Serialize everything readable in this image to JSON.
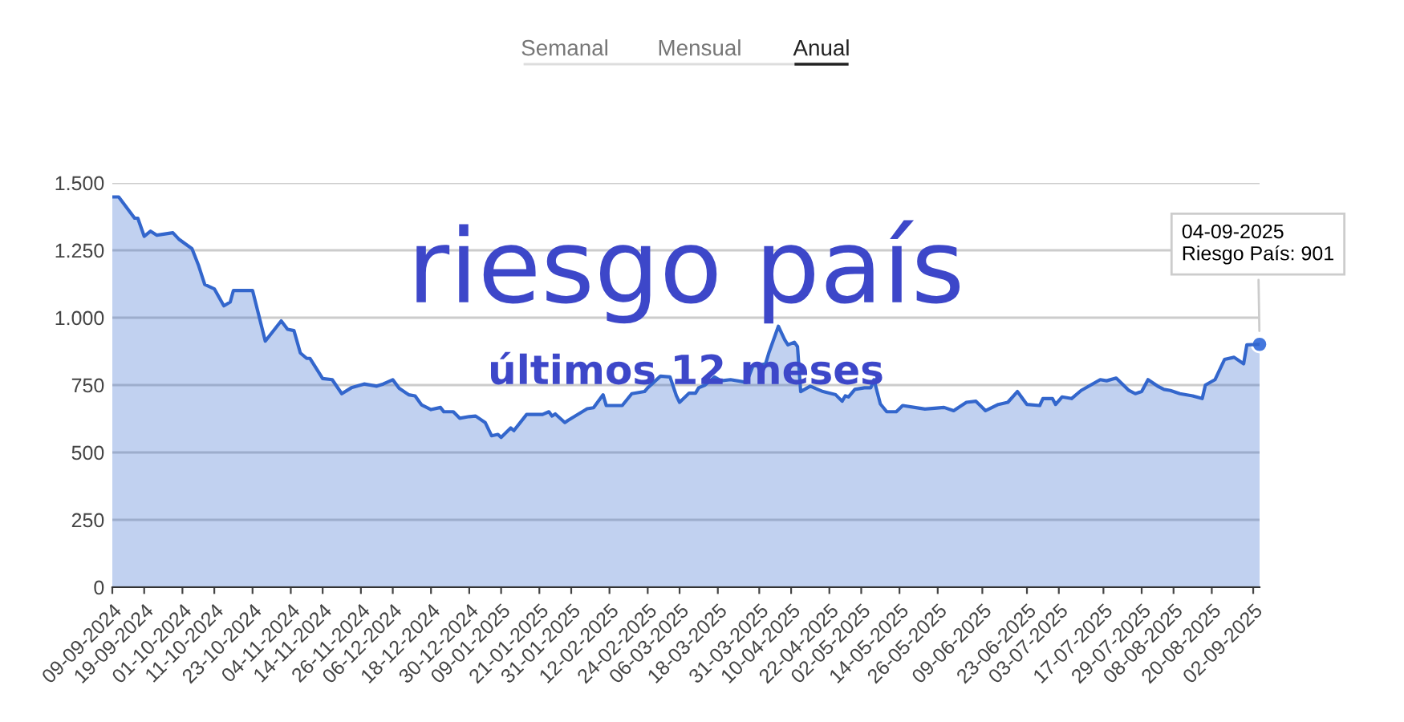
{
  "chart_data": {
    "type": "area",
    "title": "riesgo país",
    "subtitle": "últimos 12 meses",
    "annotations": [
      "Semanal",
      "Mensual",
      "Anual",
      {
        "text": "04-09-2025\nRiesgo País: 901",
        "x": "2025-09-04",
        "y": 901
      }
    ],
    "x": [
      "2024-09-09",
      "2024-09-11",
      "2024-09-16",
      "2024-09-17",
      "2024-09-19",
      "2024-09-21",
      "2024-09-23",
      "2024-09-28",
      "2024-09-30",
      "2024-10-04",
      "2024-10-06",
      "2024-10-08",
      "2024-10-11",
      "2024-10-14",
      "2024-10-16",
      "2024-10-17",
      "2024-10-23",
      "2024-10-27",
      "2024-11-01",
      "2024-11-03",
      "2024-11-05",
      "2024-11-07",
      "2024-11-09",
      "2024-11-10",
      "2024-11-14",
      "2024-11-17",
      "2024-11-20",
      "2024-11-23",
      "2024-11-27",
      "2024-12-01",
      "2024-12-03",
      "2024-12-06",
      "2024-12-08",
      "2024-12-11",
      "2024-12-13",
      "2024-12-15",
      "2024-12-18",
      "2024-12-21",
      "2024-12-22",
      "2024-12-25",
      "2024-12-27",
      "2024-12-30",
      "2025-01-01",
      "2025-01-04",
      "2025-01-06",
      "2025-01-08",
      "2025-01-09",
      "2025-01-12",
      "2025-01-13",
      "2025-01-17",
      "2025-01-22",
      "2025-01-24",
      "2025-01-25",
      "2025-01-26",
      "2025-01-29",
      "2025-01-30",
      "2025-02-05",
      "2025-02-07",
      "2025-02-10",
      "2025-02-11",
      "2025-02-16",
      "2025-02-19",
      "2025-02-23",
      "2025-02-24",
      "2025-02-28",
      "2025-03-03",
      "2025-03-05",
      "2025-03-06",
      "2025-03-09",
      "2025-03-11",
      "2025-03-12",
      "2025-03-14",
      "2025-03-17",
      "2025-03-19",
      "2025-03-22",
      "2025-03-27",
      "2025-03-29",
      "2025-04-02",
      "2025-04-03",
      "2025-04-06",
      "2025-04-08",
      "2025-04-09",
      "2025-04-11",
      "2025-04-12",
      "2025-04-13",
      "2025-04-16",
      "2025-04-20",
      "2025-04-24",
      "2025-04-26",
      "2025-04-27",
      "2025-04-28",
      "2025-04-30",
      "2025-05-03",
      "2025-05-05",
      "2025-05-06",
      "2025-05-08",
      "2025-05-10",
      "2025-05-13",
      "2025-05-15",
      "2025-05-22",
      "2025-05-28",
      "2025-05-31",
      "2025-06-04",
      "2025-06-07",
      "2025-06-10",
      "2025-06-14",
      "2025-06-17",
      "2025-06-20",
      "2025-06-23",
      "2025-06-27",
      "2025-06-28",
      "2025-07-01",
      "2025-07-02",
      "2025-07-04",
      "2025-07-07",
      "2025-07-10",
      "2025-07-16",
      "2025-07-18",
      "2025-07-21",
      "2025-07-25",
      "2025-07-27",
      "2025-07-29",
      "2025-07-31",
      "2025-08-03",
      "2025-08-05",
      "2025-08-07",
      "2025-08-10",
      "2025-08-14",
      "2025-08-17",
      "2025-08-18",
      "2025-08-21",
      "2025-08-24",
      "2025-08-27",
      "2025-08-30",
      "2025-08-31",
      "2025-09-04"
    ],
    "series": [
      {
        "color": "#3366cc",
        "values": [
          1448,
          1448,
          1369,
          1369,
          1302,
          1321,
          1306,
          1315,
          1290,
          1256,
          1196,
          1123,
          1107,
          1044,
          1058,
          1101,
          1101,
          913,
          988,
          957,
          952,
          869,
          849,
          849,
          774,
          770,
          718,
          740,
          754,
          746,
          754,
          770,
          738,
          714,
          710,
          677,
          659,
          667,
          651,
          651,
          627,
          633,
          635,
          611,
          562,
          567,
          556,
          591,
          581,
          641,
          641,
          651,
          635,
          643,
          611,
          619,
          662,
          666,
          714,
          674,
          674,
          718,
          726,
          740,
          783,
          780,
          710,
          686,
          720,
          720,
          740,
          750,
          780,
          766,
          770,
          760,
          820,
          829,
          869,
          968,
          918,
          899,
          909,
          893,
          726,
          746,
          726,
          714,
          690,
          710,
          706,
          734,
          740,
          740,
          770,
          680,
          651,
          651,
          674,
          661,
          667,
          655,
          686,
          690,
          655,
          678,
          686,
          726,
          678,
          674,
          700,
          700,
          678,
          706,
          700,
          730,
          770,
          766,
          776,
          730,
          718,
          726,
          770,
          746,
          734,
          730,
          718,
          710,
          700,
          750,
          770,
          845,
          853,
          829,
          899,
          901
        ]
      }
    ],
    "xlim": [
      "2024-09-09",
      "2025-09-04"
    ],
    "xticks": [
      {
        "value": "2024-09-09",
        "label": "09-09-2024"
      },
      {
        "value": "2024-09-19",
        "label": "19-09-2024"
      },
      {
        "value": "2024-10-01",
        "label": "01-10-2024"
      },
      {
        "value": "2024-10-11",
        "label": "11-10-2024"
      },
      {
        "value": "2024-10-23",
        "label": "23-10-2024"
      },
      {
        "value": "2024-11-04",
        "label": "04-11-2024"
      },
      {
        "value": "2024-11-14",
        "label": "14-11-2024"
      },
      {
        "value": "2024-11-26",
        "label": "26-11-2024"
      },
      {
        "value": "2024-12-06",
        "label": "06-12-2024"
      },
      {
        "value": "2024-12-18",
        "label": "18-12-2024"
      },
      {
        "value": "2024-12-30",
        "label": "30-12-2024"
      },
      {
        "value": "2025-01-09",
        "label": "09-01-2025"
      },
      {
        "value": "2025-01-21",
        "label": "21-01-2025"
      },
      {
        "value": "2025-01-31",
        "label": "31-01-2025"
      },
      {
        "value": "2025-02-12",
        "label": "12-02-2025"
      },
      {
        "value": "2025-02-24",
        "label": "24-02-2025"
      },
      {
        "value": "2025-03-06",
        "label": "06-03-2025"
      },
      {
        "value": "2025-03-18",
        "label": "18-03-2025"
      },
      {
        "value": "2025-03-31",
        "label": "31-03-2025"
      },
      {
        "value": "2025-04-10",
        "label": "10-04-2025"
      },
      {
        "value": "2025-04-22",
        "label": "22-04-2025"
      },
      {
        "value": "2025-05-02",
        "label": "02-05-2025"
      },
      {
        "value": "2025-05-14",
        "label": "14-05-2025"
      },
      {
        "value": "2025-05-26",
        "label": "26-05-2025"
      },
      {
        "value": "2025-06-09",
        "label": "09-06-2025"
      },
      {
        "value": "2025-06-23",
        "label": "23-06-2025"
      },
      {
        "value": "2025-07-03",
        "label": "03-07-2025"
      },
      {
        "value": "2025-07-17",
        "label": "17-07-2025"
      },
      {
        "value": "2025-07-29",
        "label": "29-07-2025"
      },
      {
        "value": "2025-08-08",
        "label": "08-08-2025"
      },
      {
        "value": "2025-08-20",
        "label": "20-08-2025"
      },
      {
        "value": "2025-09-02",
        "label": "02-09-2025"
      }
    ],
    "ylim": [
      0,
      1500
    ],
    "yticks": [
      0,
      250,
      500,
      750,
      {
        "value": 1000,
        "label": "1.000"
      },
      {
        "value": 1250,
        "label": "1.250"
      },
      {
        "value": 1500,
        "label": "1.500"
      }
    ],
    "grid": "y"
  }
}
